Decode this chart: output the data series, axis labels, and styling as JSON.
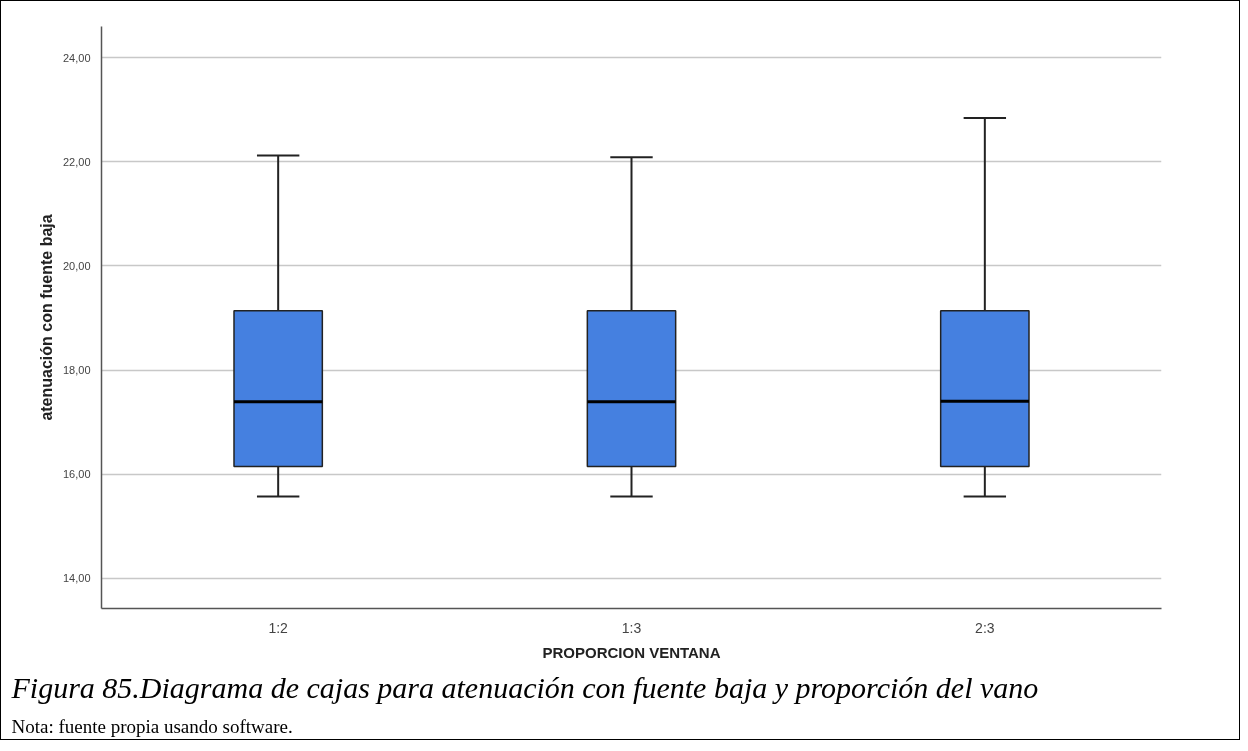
{
  "chart_data": {
    "type": "box",
    "categories": [
      "1:2",
      "1:3",
      "2:3"
    ],
    "boxes": [
      {
        "low": 15.57,
        "q1": 16.15,
        "median": 17.39,
        "q3": 19.14,
        "high": 22.12
      },
      {
        "low": 15.57,
        "q1": 16.15,
        "median": 17.39,
        "q3": 19.14,
        "high": 22.09
      },
      {
        "low": 15.57,
        "q1": 16.15,
        "median": 17.4,
        "q3": 19.14,
        "high": 22.84
      }
    ],
    "color": "#4580e0",
    "xlabel": "PROPORCION VENTANA",
    "ylabel": "atenuación con fuente baja",
    "ylim": [
      13.42,
      24.6
    ],
    "yticks": [
      {
        "value": 14,
        "label": "14,00"
      },
      {
        "value": 16,
        "label": "16,00"
      },
      {
        "value": 18,
        "label": "18,00"
      },
      {
        "value": 20,
        "label": "20,00"
      },
      {
        "value": 22,
        "label": "22,00"
      },
      {
        "value": 24,
        "label": "24,00"
      }
    ],
    "grid": "y",
    "annotations": [
      "Figura 85.Diagrama de cajas para atenuación con fuente baja y proporción del vano",
      "Nota: fuente propia usando software."
    ]
  }
}
